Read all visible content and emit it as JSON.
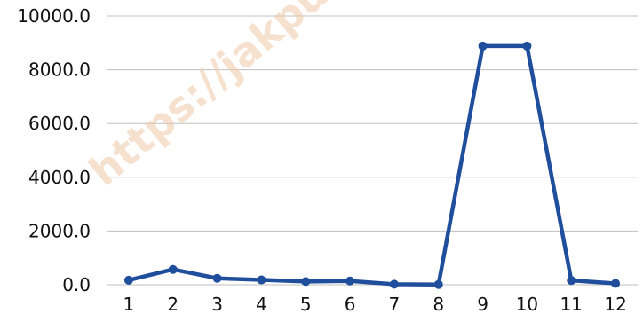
{
  "chart_data": {
    "type": "line",
    "title": "",
    "xlabel": "",
    "ylabel": "",
    "categories": [
      "1",
      "2",
      "3",
      "4",
      "5",
      "6",
      "7",
      "8",
      "9",
      "10",
      "11",
      "12"
    ],
    "series": [
      {
        "values": [
          170,
          570,
          240,
          180,
          120,
          140,
          20,
          10,
          8880,
          8880,
          160,
          50
        ]
      }
    ],
    "ylim": [
      0,
      10000
    ],
    "yticks": [
      "0.0",
      "2000.0",
      "4000.0",
      "6000.0",
      "8000.0",
      "10000.0"
    ],
    "grid": true,
    "legend": "none",
    "line_color": "#1f4e9c",
    "grid_color": "#bfbfbf"
  },
  "watermark": "https://jakpu"
}
